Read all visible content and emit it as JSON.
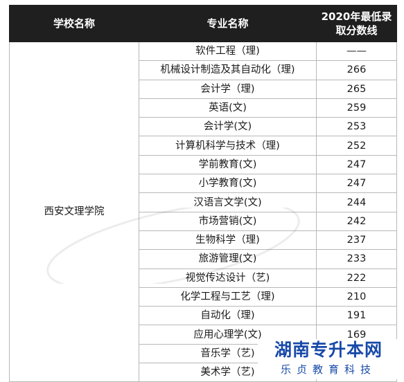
{
  "table": {
    "headers": [
      "学校名称",
      "专业名称",
      "2020年最低录",
      "取分数线"
    ],
    "school": "西安文理学院",
    "rows": [
      {
        "major": "软件工程（理)",
        "score": "——"
      },
      {
        "major": "机械设计制造及其自动化（理)",
        "score": "266"
      },
      {
        "major": "会计学（理)",
        "score": "265"
      },
      {
        "major": "英语(文)",
        "score": "259"
      },
      {
        "major": "会计学(文)",
        "score": "253"
      },
      {
        "major": "计算机科学与技术（理)",
        "score": "252"
      },
      {
        "major": "学前教育(文)",
        "score": "247"
      },
      {
        "major": "小学教育(文)",
        "score": "247"
      },
      {
        "major": "汉语言文学(文)",
        "score": "244"
      },
      {
        "major": "市场营销(文)",
        "score": "242"
      },
      {
        "major": "生物科学（理)",
        "score": "237"
      },
      {
        "major": "旅游管理(文)",
        "score": "233"
      },
      {
        "major": "视觉传达设计（艺)",
        "score": "222"
      },
      {
        "major": "化学工程与工艺（理)",
        "score": "210"
      },
      {
        "major": "自动化（理)",
        "score": "191"
      },
      {
        "major": "应用心理学(文)",
        "score": "169"
      },
      {
        "major": "音乐学（艺)",
        "score": ""
      },
      {
        "major": "美术学（艺)",
        "score": ""
      }
    ]
  },
  "brand": {
    "title": "湖南专升本网",
    "subtitle": "乐贞教育科技"
  }
}
